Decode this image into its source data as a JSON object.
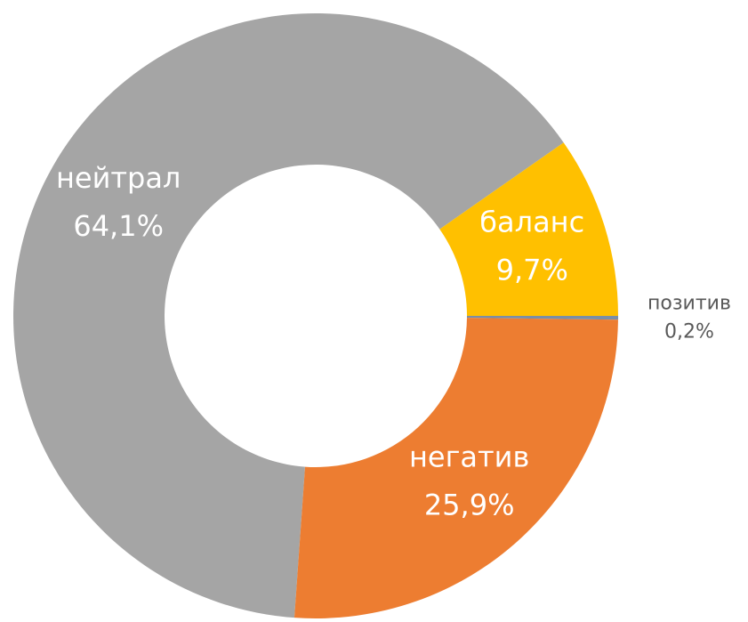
{
  "chart_data": {
    "type": "donut",
    "categories": [
      "нейтрал",
      "баланс",
      "позитив",
      "негатив"
    ],
    "values": [
      64.1,
      9.7,
      0.2,
      25.9
    ],
    "value_labels": [
      "64,1%",
      "9,7%",
      "0,2%",
      "25,9%"
    ],
    "colors": [
      "#a5a5a5",
      "#ffc000",
      "#7a8ea6",
      "#ed7d31"
    ]
  }
}
